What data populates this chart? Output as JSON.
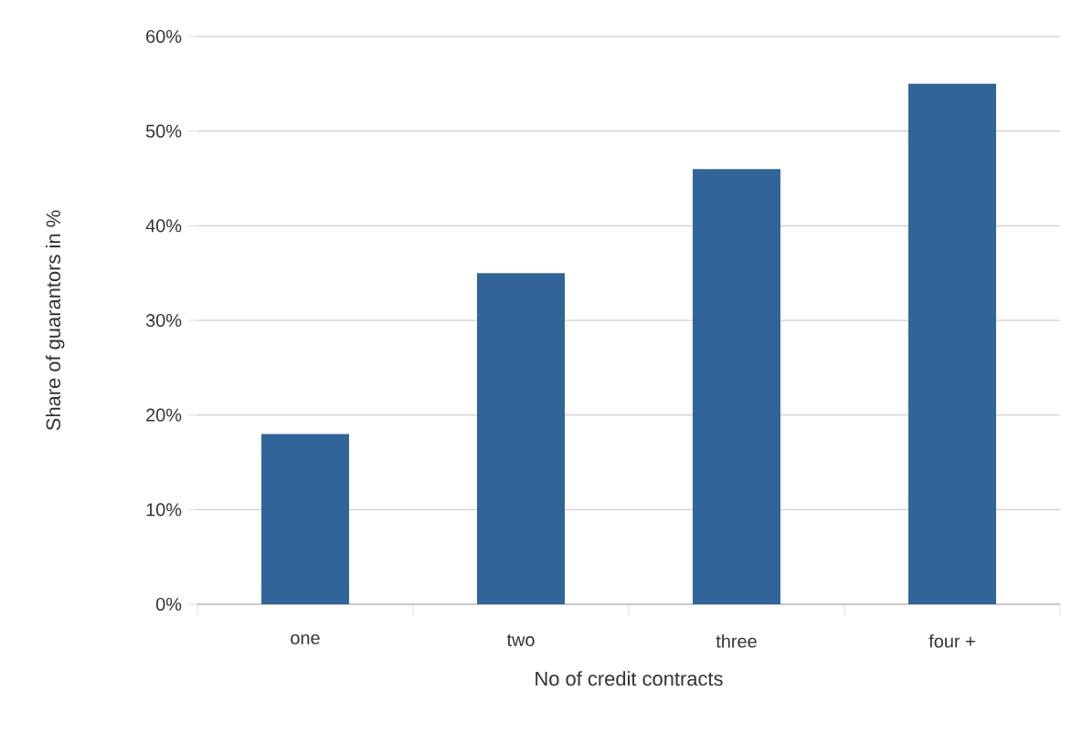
{
  "chart_data": {
    "type": "bar",
    "xlabel": "No of credit contracts",
    "ylabel": "Share of guarantors in %",
    "categories": [
      "one",
      "two",
      "three",
      "four +"
    ],
    "values": [
      18,
      35,
      46,
      55
    ],
    "color": "#31659a",
    "ylim": [
      0,
      60
    ],
    "yticks": [
      {
        "value": 0,
        "label": "0%"
      },
      {
        "value": 10,
        "label": "10%"
      },
      {
        "value": 20,
        "label": "20%"
      },
      {
        "value": 30,
        "label": "30%"
      },
      {
        "value": 40,
        "label": "40%"
      },
      {
        "value": 50,
        "label": "50%"
      },
      {
        "value": 60,
        "label": "60%"
      }
    ],
    "grid": "y"
  }
}
